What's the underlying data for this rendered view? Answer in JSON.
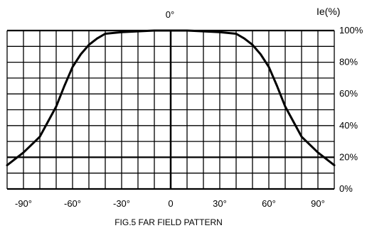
{
  "chart_data": {
    "type": "line",
    "caption": "FIG.5 FAR FIELD PATTERN",
    "ylabel": "Ie(%)",
    "center_label": "0°",
    "xlim": [
      -100,
      100
    ],
    "ylim": [
      0,
      100
    ],
    "x_ticks": [
      {
        "value": -90,
        "label": "-90°"
      },
      {
        "value": -60,
        "label": "-60°"
      },
      {
        "value": -30,
        "label": "-30°"
      },
      {
        "value": 0,
        "label": "0"
      },
      {
        "value": 30,
        "label": "30°"
      },
      {
        "value": 60,
        "label": "60°"
      },
      {
        "value": 90,
        "label": "90°"
      }
    ],
    "y_ticks": [
      {
        "value": 100,
        "label": "100%"
      },
      {
        "value": 80,
        "label": "80%"
      },
      {
        "value": 60,
        "label": "60%"
      },
      {
        "value": 40,
        "label": "40%"
      },
      {
        "value": 20,
        "label": "20%"
      },
      {
        "value": 0,
        "label": "0%"
      }
    ],
    "grid": true,
    "series": [
      {
        "color": "#000000",
        "x": [
          -100,
          -90,
          -80,
          -70,
          -65,
          -60,
          -55,
          -50,
          -45,
          -40,
          -30,
          -20,
          -10,
          0,
          10,
          20,
          30,
          40,
          45,
          50,
          55,
          60,
          65,
          70,
          80,
          90,
          100
        ],
        "y": [
          15,
          23,
          33,
          52,
          65,
          77,
          85,
          91,
          95,
          98,
          99,
          99.5,
          100,
          100,
          100,
          99.5,
          99,
          98,
          95,
          91,
          85,
          77,
          65,
          52,
          33,
          23,
          15
        ]
      }
    ]
  }
}
